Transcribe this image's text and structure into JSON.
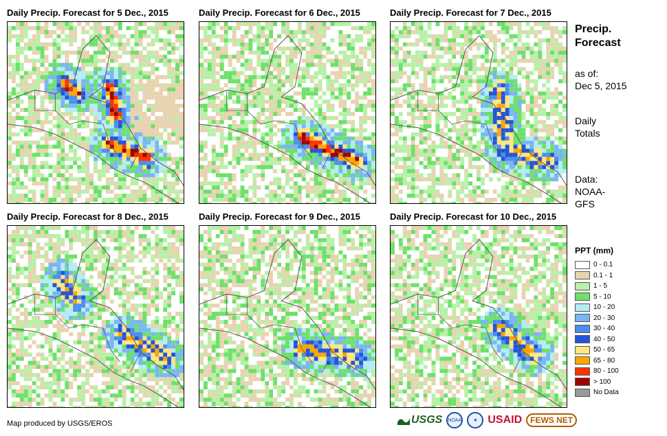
{
  "panels": [
    {
      "title": "Daily Precip. Forecast for 5 Dec., 2015"
    },
    {
      "title": "Daily Precip. Forecast for 6 Dec., 2015"
    },
    {
      "title": "Daily Precip. Forecast for 7 Dec., 2015"
    },
    {
      "title": "Daily Precip. Forecast for 8 Dec., 2015"
    },
    {
      "title": "Daily Precip. Forecast for 9 Dec., 2015"
    },
    {
      "title": "Daily Precip. Forecast for 10 Dec., 2015"
    }
  ],
  "sidebar": {
    "title_line1": "Precip.",
    "title_line2": "Forecast",
    "asof_label": "as of:",
    "asof_date": "Dec 5, 2015",
    "totals_line1": "Daily",
    "totals_line2": "Totals",
    "data_line1": "Data:",
    "data_line2": "NOAA-",
    "data_line3": "GFS"
  },
  "legend": {
    "title": "PPT (mm)",
    "items": [
      {
        "label": "0 - 0.1",
        "color": "#ffffff"
      },
      {
        "label": "0.1 - 1",
        "color": "#e8d3b0"
      },
      {
        "label": "1 - 5",
        "color": "#b8f0a8"
      },
      {
        "label": "5 - 10",
        "color": "#6ee06a"
      },
      {
        "label": "10 - 20",
        "color": "#b4ecf5"
      },
      {
        "label": "20 - 30",
        "color": "#7ab6f0"
      },
      {
        "label": "30 - 40",
        "color": "#4a8ff0"
      },
      {
        "label": "40 - 50",
        "color": "#2255d8"
      },
      {
        "label": "50 - 65",
        "color": "#ffe680"
      },
      {
        "label": "65 - 80",
        "color": "#ffa500"
      },
      {
        "label": "80 - 100",
        "color": "#ff3300"
      },
      {
        "label": "> 100",
        "color": "#a00000"
      },
      {
        "label": "No Data",
        "color": "#999999"
      }
    ]
  },
  "footer": {
    "credit": "Map produced by USGS/EROS",
    "logo_usgs": "USGS",
    "logo_noaa": "NOAA",
    "logo_usaid": "USAID",
    "logo_fews": "FEWS NET"
  }
}
